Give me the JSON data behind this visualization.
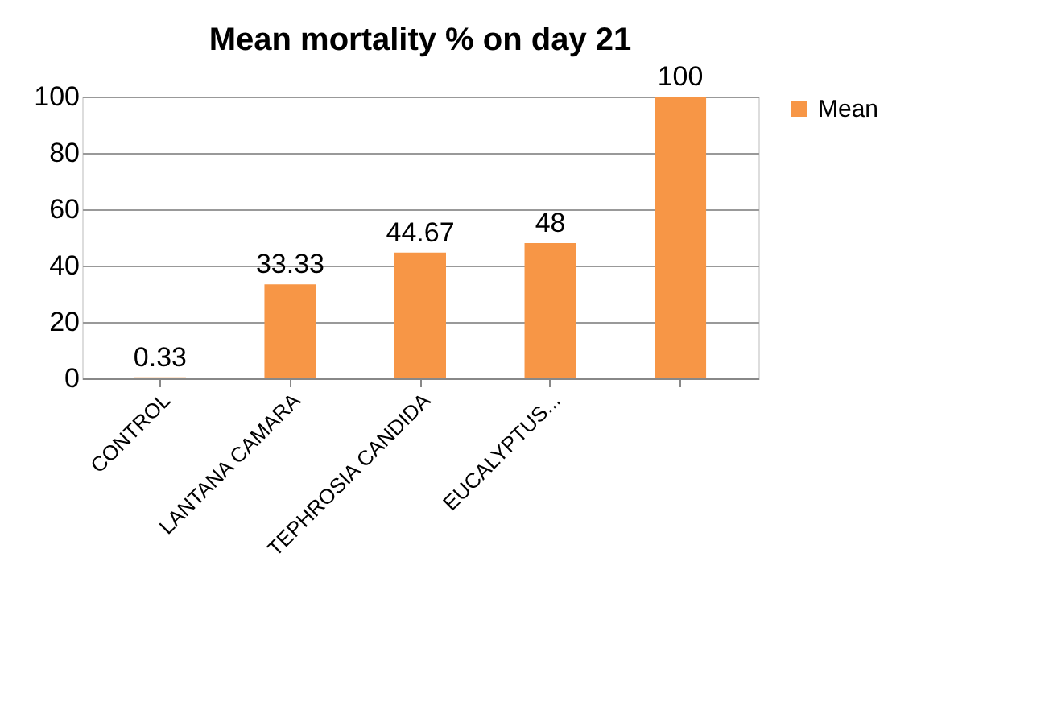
{
  "chart_data": {
    "type": "bar",
    "title": "Mean mortality % on day 21",
    "categories": [
      "CONTROL",
      "LANTANA CAMARA",
      "TEPHROSIA CANDIDA",
      "EUCALYPTUS...",
      null
    ],
    "series": [
      {
        "name": "Mean",
        "color": "#f79646",
        "values": [
          0.33,
          33.33,
          44.67,
          48,
          100
        ]
      }
    ],
    "ylim": [
      0,
      100
    ],
    "yticks": [
      0,
      20,
      40,
      60,
      80,
      100
    ],
    "grid": "y",
    "legend": "right",
    "data_labels": true
  }
}
